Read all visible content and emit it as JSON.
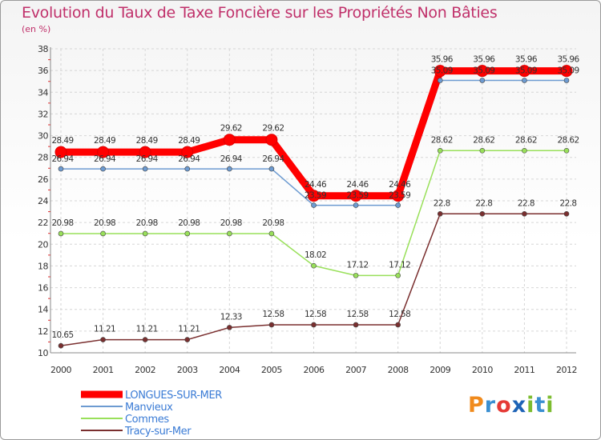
{
  "header": {
    "title": "Evolution du Taux de Taxe Foncière sur les Propriétés Non Bâties",
    "unit": "(en %)"
  },
  "logo": {
    "text": "Proxiti",
    "colors": [
      "#f08a1c",
      "#3a8fd1",
      "#e53935",
      "#1e63b6",
      "#7cbc2f",
      "#3a8fd1",
      "#7cbc2f"
    ]
  },
  "chart_data": {
    "type": "line",
    "title": "Evolution du Taux de Taxe Foncière sur les Propriétés Non Bâties",
    "ylabel": "(en %)",
    "xlabel": "",
    "x": [
      "2000",
      "2001",
      "2002",
      "2003",
      "2004",
      "2005",
      "2006",
      "2007",
      "2008",
      "2009",
      "2010",
      "2011",
      "2012"
    ],
    "ylim": [
      10,
      38
    ],
    "yticks": [
      10,
      12,
      14,
      16,
      18,
      20,
      22,
      24,
      26,
      28,
      30,
      32,
      34,
      36,
      38
    ],
    "grid": true,
    "legend": "bottom-left",
    "series": [
      {
        "name": "LONGUES-SUR-MER",
        "color": "#ff0000",
        "values": [
          28.49,
          28.49,
          28.49,
          28.49,
          29.62,
          29.62,
          24.46,
          24.46,
          24.46,
          35.96,
          35.96,
          35.96,
          35.96
        ],
        "labels": [
          "28.49",
          "28.49",
          "28.49",
          "28.49",
          "29.62",
          "29.62",
          "24.46",
          "24.46",
          "24.46",
          "35.96",
          "35.96",
          "35.96",
          "35.96"
        ]
      },
      {
        "name": "Manvieux",
        "color": "#6d9bd1",
        "values": [
          26.94,
          26.94,
          26.94,
          26.94,
          26.94,
          26.94,
          23.59,
          23.59,
          23.59,
          35.09,
          35.09,
          35.09,
          35.09
        ],
        "labels": [
          "26.94",
          "26.94",
          "26.94",
          "26.94",
          "26.94",
          "26.94",
          "23.59",
          "23.59",
          "23.59",
          "35.09",
          "35.09",
          "35.09",
          "35.09"
        ]
      },
      {
        "name": "Commes",
        "color": "#99e05a",
        "values": [
          20.98,
          20.98,
          20.98,
          20.98,
          20.98,
          20.98,
          18.02,
          17.12,
          17.12,
          28.62,
          28.62,
          28.62,
          28.62
        ],
        "labels": [
          "20.98",
          "20.98",
          "20.98",
          "20.98",
          "20.98",
          "20.98",
          "18.02",
          "17.12",
          "17.12",
          "28.62",
          "28.62",
          "28.62",
          "28.62"
        ]
      },
      {
        "name": "Tracy-sur-Mer",
        "color": "#7a2f2f",
        "values": [
          10.65,
          11.21,
          11.21,
          11.21,
          12.33,
          12.58,
          12.58,
          12.58,
          12.58,
          22.8,
          22.8,
          22.8,
          22.8
        ],
        "labels": [
          "10.65",
          "11.21",
          "11.21",
          "11.21",
          "12.33",
          "12.58",
          "12.58",
          "12.58",
          "12.58",
          "22.8",
          "22.8",
          "22.8",
          "22.8"
        ]
      }
    ]
  }
}
